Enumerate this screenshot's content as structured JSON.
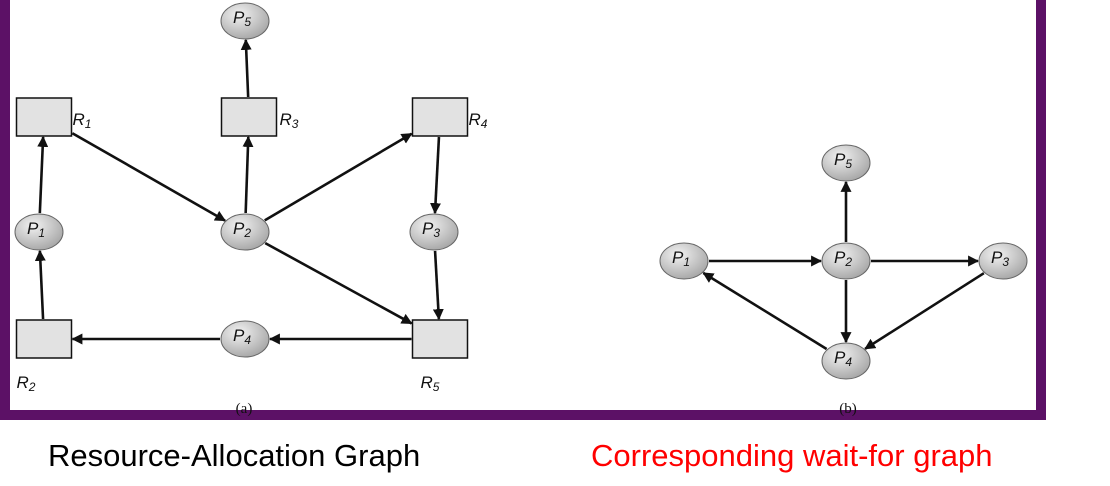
{
  "colors": {
    "border": "#5c1166",
    "process_fill": "#c9c9c9",
    "resource_fill": "#e2e2e2",
    "caption_left": "#000000",
    "caption_right": "#ff0000"
  },
  "graph_a": {
    "sublabel": "(a)",
    "processes": [
      {
        "id": "P5",
        "name": "P",
        "sub": "5"
      },
      {
        "id": "P1",
        "name": "P",
        "sub": "1"
      },
      {
        "id": "P2",
        "name": "P",
        "sub": "2"
      },
      {
        "id": "P3",
        "name": "P",
        "sub": "3"
      },
      {
        "id": "P4",
        "name": "P",
        "sub": "4"
      }
    ],
    "resources": [
      {
        "id": "R1",
        "name": "R",
        "sub": "1"
      },
      {
        "id": "R3",
        "name": "R",
        "sub": "3"
      },
      {
        "id": "R4",
        "name": "R",
        "sub": "4"
      },
      {
        "id": "R2",
        "name": "R",
        "sub": "2"
      },
      {
        "id": "R5",
        "name": "R",
        "sub": "5"
      }
    ],
    "edges": [
      {
        "from": "R3",
        "to": "P5"
      },
      {
        "from": "P2",
        "to": "R3"
      },
      {
        "from": "R1",
        "to": "P2"
      },
      {
        "from": "P2",
        "to": "R4"
      },
      {
        "from": "R4",
        "to": "P3"
      },
      {
        "from": "P3",
        "to": "R5"
      },
      {
        "from": "P2",
        "to": "R5"
      },
      {
        "from": "R5",
        "to": "P4"
      },
      {
        "from": "P4",
        "to": "R2"
      },
      {
        "from": "R2",
        "to": "P1"
      },
      {
        "from": "P1",
        "to": "R1"
      }
    ]
  },
  "graph_b": {
    "sublabel": "(b)",
    "processes": [
      {
        "id": "P5",
        "name": "P",
        "sub": "5"
      },
      {
        "id": "P1",
        "name": "P",
        "sub": "1"
      },
      {
        "id": "P2",
        "name": "P",
        "sub": "2"
      },
      {
        "id": "P3",
        "name": "P",
        "sub": "3"
      },
      {
        "id": "P4",
        "name": "P",
        "sub": "4"
      }
    ],
    "edges": [
      {
        "from": "P2",
        "to": "P5"
      },
      {
        "from": "P1",
        "to": "P2"
      },
      {
        "from": "P2",
        "to": "P3"
      },
      {
        "from": "P2",
        "to": "P4"
      },
      {
        "from": "P3",
        "to": "P4"
      },
      {
        "from": "P4",
        "to": "P1"
      }
    ]
  },
  "captions": {
    "left": "Resource-Allocation Graph",
    "right": "Corresponding wait-for graph"
  }
}
